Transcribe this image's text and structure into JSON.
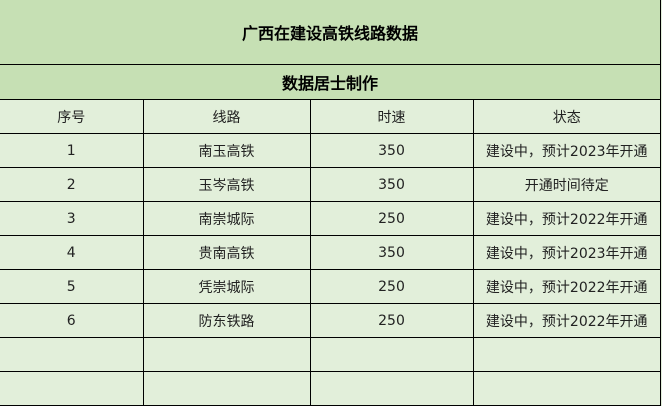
{
  "title": "广西在建设高铁线路数据",
  "subtitle": "数据居士制作",
  "headers": [
    "序号",
    "线路",
    "时速",
    "状态"
  ],
  "rows": [
    [
      "1",
      "南玉高铁",
      "350",
      "建设中，预计2023年开通"
    ],
    [
      "2",
      "玉岑高铁",
      "350",
      "开通时间待定"
    ],
    [
      "3",
      "南崇城际",
      "250",
      "建设中，预计2022年开通"
    ],
    [
      "4",
      "贵南高铁",
      "350",
      "建设中，预计2023年开通"
    ],
    [
      "5",
      "凭崇城际",
      "250",
      "建设中，预计2022年开通"
    ],
    [
      "6",
      "防东铁路",
      "250",
      "建设中，预计2022年开通"
    ]
  ],
  "colors": {
    "title_bg": "#c6e0b4",
    "table_bg": "#e2efda"
  }
}
